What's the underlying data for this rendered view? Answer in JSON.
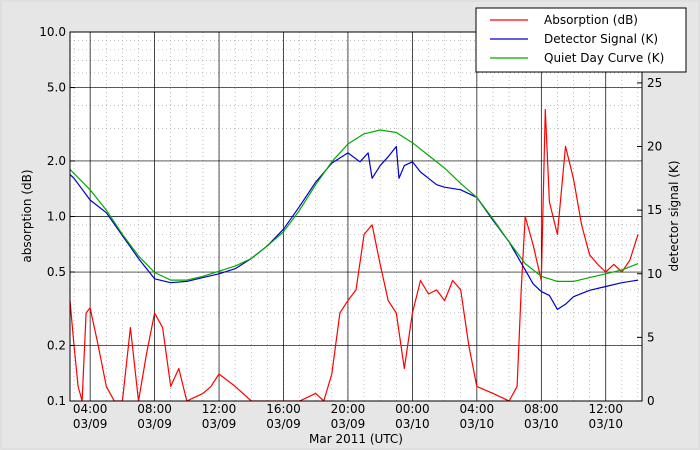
{
  "chart_data": {
    "type": "line",
    "title": "",
    "xlabel": "Mar 2011 (UTC)",
    "ylabel": "absorption (dB)",
    "y2label": "detector signal (K)",
    "y_scale": "log",
    "ylim": [
      0.1,
      10.0
    ],
    "y_ticks": [
      0.1,
      0.2,
      0.5,
      1.0,
      2.0,
      5.0,
      10.0
    ],
    "y_tick_labels": [
      "0.1",
      "0.2",
      "0.5",
      "1.0",
      "2.0",
      "5.0",
      "10.0"
    ],
    "y2lim": [
      0,
      29
    ],
    "y2_ticks": [
      0,
      5,
      10,
      15,
      20,
      25
    ],
    "y2_tick_labels": [
      "0",
      "5",
      "10",
      "15",
      "20",
      "25"
    ],
    "xlim": [
      "2011-03-09T02:45",
      "2011-03-10T14:15"
    ],
    "x_ticks": [
      {
        "time": "2011-03-09T04:00",
        "label_time": "04:00",
        "label_date": "03/09"
      },
      {
        "time": "2011-03-09T08:00",
        "label_time": "08:00",
        "label_date": "03/09"
      },
      {
        "time": "2011-03-09T12:00",
        "label_time": "12:00",
        "label_date": "03/09"
      },
      {
        "time": "2011-03-09T16:00",
        "label_time": "16:00",
        "label_date": "03/09"
      },
      {
        "time": "2011-03-09T20:00",
        "label_time": "20:00",
        "label_date": "03/09"
      },
      {
        "time": "2011-03-10T00:00",
        "label_time": "00:00",
        "label_date": "03/10"
      },
      {
        "time": "2011-03-10T04:00",
        "label_time": "04:00",
        "label_date": "03/10"
      },
      {
        "time": "2011-03-10T08:00",
        "label_time": "08:00",
        "label_date": "03/10"
      },
      {
        "time": "2011-03-10T12:00",
        "label_time": "12:00",
        "label_date": "03/10"
      }
    ],
    "grid": true,
    "legend_position": "top-right",
    "series": [
      {
        "name": "Absorption (dB)",
        "color": "#ff0000",
        "axis": "left",
        "points": [
          [
            "2011-03-09T02:45",
            0.35
          ],
          [
            "2011-03-09T03:00",
            0.2
          ],
          [
            "2011-03-09T03:15",
            0.12
          ],
          [
            "2011-03-09T03:30",
            0.1
          ],
          [
            "2011-03-09T03:45",
            0.3
          ],
          [
            "2011-03-09T04:00",
            0.32
          ],
          [
            "2011-03-09T04:30",
            0.2
          ],
          [
            "2011-03-09T05:00",
            0.12
          ],
          [
            "2011-03-09T05:30",
            0.1
          ],
          [
            "2011-03-09T06:00",
            0.1
          ],
          [
            "2011-03-09T06:30",
            0.25
          ],
          [
            "2011-03-09T07:00",
            0.1
          ],
          [
            "2011-03-09T07:30",
            0.18
          ],
          [
            "2011-03-09T08:00",
            0.3
          ],
          [
            "2011-03-09T08:30",
            0.25
          ],
          [
            "2011-03-09T09:00",
            0.12
          ],
          [
            "2011-03-09T09:30",
            0.15
          ],
          [
            "2011-03-09T10:00",
            0.1
          ],
          [
            "2011-03-09T11:00",
            0.11
          ],
          [
            "2011-03-09T11:30",
            0.12
          ],
          [
            "2011-03-09T12:00",
            0.14
          ],
          [
            "2011-03-09T13:00",
            0.12
          ],
          [
            "2011-03-09T14:00",
            0.1
          ],
          [
            "2011-03-09T17:00",
            0.1
          ],
          [
            "2011-03-09T18:00",
            0.11
          ],
          [
            "2011-03-09T18:30",
            0.1
          ],
          [
            "2011-03-09T19:00",
            0.14
          ],
          [
            "2011-03-09T19:30",
            0.3
          ],
          [
            "2011-03-09T20:00",
            0.35
          ],
          [
            "2011-03-09T20:30",
            0.4
          ],
          [
            "2011-03-09T21:00",
            0.8
          ],
          [
            "2011-03-09T21:30",
            0.9
          ],
          [
            "2011-03-09T22:00",
            0.55
          ],
          [
            "2011-03-09T22:30",
            0.35
          ],
          [
            "2011-03-09T23:00",
            0.3
          ],
          [
            "2011-03-09T23:30",
            0.15
          ],
          [
            "2011-03-10T00:00",
            0.3
          ],
          [
            "2011-03-10T00:30",
            0.45
          ],
          [
            "2011-03-10T01:00",
            0.38
          ],
          [
            "2011-03-10T01:30",
            0.4
          ],
          [
            "2011-03-10T02:00",
            0.35
          ],
          [
            "2011-03-10T02:30",
            0.45
          ],
          [
            "2011-03-10T03:00",
            0.4
          ],
          [
            "2011-03-10T03:30",
            0.2
          ],
          [
            "2011-03-10T04:00",
            0.12
          ],
          [
            "2011-03-10T05:00",
            0.11
          ],
          [
            "2011-03-10T06:00",
            0.1
          ],
          [
            "2011-03-10T06:30",
            0.12
          ],
          [
            "2011-03-10T06:45",
            0.4
          ],
          [
            "2011-03-10T07:00",
            1.0
          ],
          [
            "2011-03-10T07:30",
            0.7
          ],
          [
            "2011-03-10T08:00",
            0.45
          ],
          [
            "2011-03-10T08:15",
            3.8
          ],
          [
            "2011-03-10T08:30",
            1.2
          ],
          [
            "2011-03-10T09:00",
            0.8
          ],
          [
            "2011-03-10T09:30",
            2.4
          ],
          [
            "2011-03-10T10:00",
            1.6
          ],
          [
            "2011-03-10T10:30",
            0.9
          ],
          [
            "2011-03-10T11:00",
            0.62
          ],
          [
            "2011-03-10T11:30",
            0.55
          ],
          [
            "2011-03-10T12:00",
            0.5
          ],
          [
            "2011-03-10T12:30",
            0.55
          ],
          [
            "2011-03-10T13:00",
            0.5
          ],
          [
            "2011-03-10T13:30",
            0.58
          ],
          [
            "2011-03-10T14:00",
            0.8
          ]
        ]
      },
      {
        "name": "Detector Signal (K)",
        "color": "#0000cc",
        "axis": "right",
        "points": [
          [
            "2011-03-09T02:45",
            17.8
          ],
          [
            "2011-03-09T03:00",
            17.5
          ],
          [
            "2011-03-09T04:00",
            15.8
          ],
          [
            "2011-03-09T05:00",
            14.8
          ],
          [
            "2011-03-09T06:00",
            13.0
          ],
          [
            "2011-03-09T07:00",
            11.2
          ],
          [
            "2011-03-09T08:00",
            9.6
          ],
          [
            "2011-03-09T09:00",
            9.3
          ],
          [
            "2011-03-09T10:00",
            9.4
          ],
          [
            "2011-03-09T11:00",
            9.7
          ],
          [
            "2011-03-09T12:00",
            10.0
          ],
          [
            "2011-03-09T13:00",
            10.4
          ],
          [
            "2011-03-09T14:00",
            11.2
          ],
          [
            "2011-03-09T15:00",
            12.2
          ],
          [
            "2011-03-09T16:00",
            13.5
          ],
          [
            "2011-03-09T17:00",
            15.3
          ],
          [
            "2011-03-09T18:00",
            17.2
          ],
          [
            "2011-03-09T19:00",
            18.7
          ],
          [
            "2011-03-09T20:00",
            19.5
          ],
          [
            "2011-03-09T20:45",
            18.8
          ],
          [
            "2011-03-09T21:15",
            19.5
          ],
          [
            "2011-03-09T21:30",
            17.5
          ],
          [
            "2011-03-09T22:00",
            18.5
          ],
          [
            "2011-03-09T22:30",
            19.2
          ],
          [
            "2011-03-09T23:00",
            20.0
          ],
          [
            "2011-03-09T23:10",
            17.5
          ],
          [
            "2011-03-09T23:30",
            18.5
          ],
          [
            "2011-03-10T00:00",
            18.8
          ],
          [
            "2011-03-10T00:30",
            18.0
          ],
          [
            "2011-03-10T01:00",
            17.5
          ],
          [
            "2011-03-10T01:30",
            17.0
          ],
          [
            "2011-03-10T02:00",
            16.8
          ],
          [
            "2011-03-10T03:00",
            16.6
          ],
          [
            "2011-03-10T04:00",
            16.0
          ],
          [
            "2011-03-10T05:00",
            14.2
          ],
          [
            "2011-03-10T06:00",
            12.5
          ],
          [
            "2011-03-10T07:00",
            10.3
          ],
          [
            "2011-03-10T07:30",
            9.2
          ],
          [
            "2011-03-10T08:00",
            8.6
          ],
          [
            "2011-03-10T08:30",
            8.3
          ],
          [
            "2011-03-10T09:00",
            7.2
          ],
          [
            "2011-03-10T09:30",
            7.6
          ],
          [
            "2011-03-10T10:00",
            8.2
          ],
          [
            "2011-03-10T11:00",
            8.7
          ],
          [
            "2011-03-10T12:00",
            9.0
          ],
          [
            "2011-03-10T13:00",
            9.3
          ],
          [
            "2011-03-10T14:00",
            9.5
          ]
        ]
      },
      {
        "name": "Quiet Day Curve (K)",
        "color": "#00aa00",
        "axis": "right",
        "points": [
          [
            "2011-03-09T02:45",
            18.2
          ],
          [
            "2011-03-09T04:00",
            16.6
          ],
          [
            "2011-03-09T05:00",
            15.0
          ],
          [
            "2011-03-09T06:00",
            13.1
          ],
          [
            "2011-03-09T07:00",
            11.4
          ],
          [
            "2011-03-09T08:00",
            10.1
          ],
          [
            "2011-03-09T09:00",
            9.5
          ],
          [
            "2011-03-09T10:00",
            9.5
          ],
          [
            "2011-03-09T11:00",
            9.8
          ],
          [
            "2011-03-09T12:00",
            10.2
          ],
          [
            "2011-03-09T13:00",
            10.6
          ],
          [
            "2011-03-09T14:00",
            11.2
          ],
          [
            "2011-03-09T15:00",
            12.2
          ],
          [
            "2011-03-09T16:00",
            13.3
          ],
          [
            "2011-03-09T17:00",
            15.0
          ],
          [
            "2011-03-09T18:00",
            17.0
          ],
          [
            "2011-03-09T19:00",
            18.8
          ],
          [
            "2011-03-09T20:00",
            20.2
          ],
          [
            "2011-03-09T21:00",
            21.0
          ],
          [
            "2011-03-09T22:00",
            21.3
          ],
          [
            "2011-03-09T23:00",
            21.1
          ],
          [
            "2011-03-10T00:00",
            20.3
          ],
          [
            "2011-03-10T01:00",
            19.3
          ],
          [
            "2011-03-10T02:00",
            18.3
          ],
          [
            "2011-03-10T03:00",
            17.1
          ],
          [
            "2011-03-10T04:00",
            16.0
          ],
          [
            "2011-03-10T05:00",
            14.3
          ],
          [
            "2011-03-10T06:00",
            12.5
          ],
          [
            "2011-03-10T07:00",
            10.8
          ],
          [
            "2011-03-10T08:00",
            9.8
          ],
          [
            "2011-03-10T09:00",
            9.4
          ],
          [
            "2011-03-10T10:00",
            9.4
          ],
          [
            "2011-03-10T11:00",
            9.7
          ],
          [
            "2011-03-10T12:00",
            10.0
          ],
          [
            "2011-03-10T13:00",
            10.3
          ],
          [
            "2011-03-10T14:00",
            10.8
          ]
        ]
      }
    ]
  }
}
